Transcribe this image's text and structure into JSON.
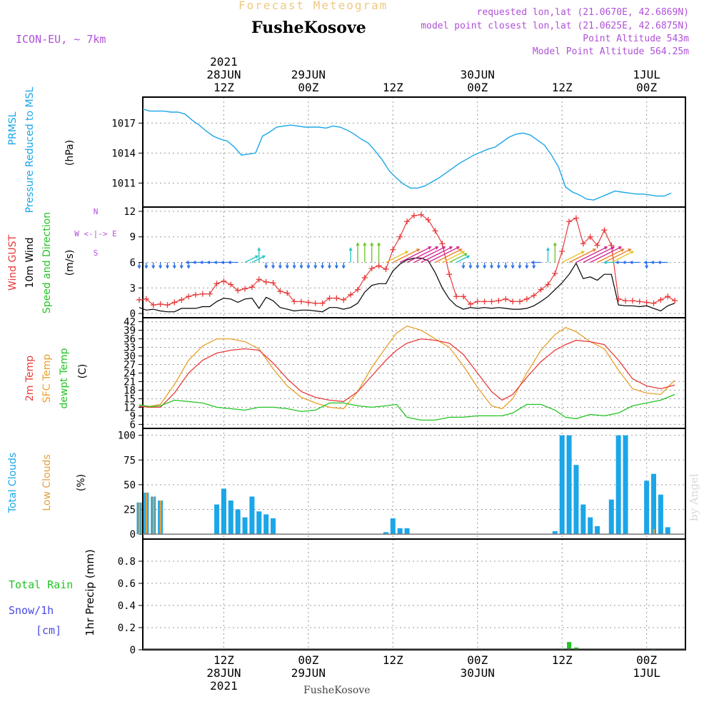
{
  "header": {
    "forecast_title": "Forecast Meteogram",
    "location": "FusheKosove",
    "model": "ICON-EU, ~ 7km",
    "requested": "requested lon,lat (21.0670E, 42.6869N)",
    "closest": "model point closest lon,lat (21.0625E, 42.6875N)",
    "point_alt": "Point Altitude 543m",
    "model_alt": "Model Point Altitude 564.25m",
    "footer_location": "FusheKosove",
    "watermark": "by Angel"
  },
  "time_axis": {
    "top_ticks": [
      {
        "lines": [
          "2021",
          "28JUN",
          "12Z"
        ],
        "t": 12
      },
      {
        "lines": [
          "29JUN",
          "00Z"
        ],
        "t": 24
      },
      {
        "lines": [
          "12Z"
        ],
        "t": 36
      },
      {
        "lines": [
          "30JUN",
          "00Z"
        ],
        "t": 48
      },
      {
        "lines": [
          "12Z"
        ],
        "t": 60
      },
      {
        "lines": [
          "1JUL",
          "00Z"
        ],
        "t": 72
      }
    ],
    "bottom_ticks": [
      {
        "lines": [
          "12Z",
          "28JUN",
          "2021"
        ],
        "t": 12
      },
      {
        "lines": [
          "00Z",
          "29JUN"
        ],
        "t": 24
      },
      {
        "lines": [
          "12Z"
        ],
        "t": 36
      },
      {
        "lines": [
          "00Z",
          "30JUN"
        ],
        "t": 48
      },
      {
        "lines": [
          "12Z"
        ],
        "t": 60
      },
      {
        "lines": [
          "00Z",
          "1JUL"
        ],
        "t": 72
      }
    ]
  },
  "colors": {
    "pressure": "#1ba6e8",
    "gust": "#e83a3a",
    "wind": "#000000",
    "temp2m": "#e83a3a",
    "sfc": "#e8a02a",
    "dewpt": "#22c422",
    "total_cloud": "#1ba6e8",
    "low_cloud": "#e0a040",
    "rain": "#22c422",
    "snow": "#4a4ae8",
    "purple": "#b050d8",
    "title_gold": "#f0c880"
  },
  "chart_data": [
    {
      "type": "line",
      "panel": "pressure",
      "ylabel": [
        "PRMSL",
        "Pressure Reduced to MSL",
        "(hPa)"
      ],
      "ylim": [
        1008.6,
        1019.6
      ],
      "yticks": [
        1011,
        1014,
        1017
      ],
      "x": [
        0.5,
        1.5,
        2.5,
        3.5,
        4.5,
        5.5,
        6.5,
        7.5,
        8.5,
        9.5,
        10.5,
        11.5,
        12.5,
        13.5,
        14.5,
        15.5,
        16.5,
        17.5,
        18.5,
        19.5,
        20.5,
        21.5,
        22.5,
        23.5,
        24.5,
        25.5,
        26.5,
        27.5,
        28.5,
        29.5,
        30.5,
        31.5,
        32.5,
        33.5,
        34.5,
        35.5,
        36.5,
        37.5,
        38.5,
        39.5,
        40.5,
        41.5,
        42.5,
        43.5,
        44.5,
        45.5,
        46.5,
        47.5,
        48.5,
        49.5,
        50.5,
        51.5,
        52.5,
        53.5,
        54.5,
        55.5,
        56.5,
        57.5,
        58.5,
        59.5,
        60.5,
        61.5,
        62.5,
        63.5,
        64.5,
        65.5,
        66.5,
        67.5,
        68.5,
        69.5,
        70.5,
        71.5,
        72.5,
        73.5,
        74.5,
        75.5
      ],
      "series": [
        {
          "name": "PRMSL",
          "values": [
            1018.4,
            1018.2,
            1018.2,
            1018.2,
            1018.1,
            1018.1,
            1017.9,
            1017.3,
            1016.8,
            1016.2,
            1015.7,
            1015.4,
            1015.2,
            1014.6,
            1013.8,
            1013.9,
            1014.0,
            1015.7,
            1016.1,
            1016.6,
            1016.7,
            1016.8,
            1016.7,
            1016.6,
            1016.6,
            1016.6,
            1016.5,
            1016.7,
            1016.6,
            1016.3,
            1015.9,
            1015.4,
            1015.0,
            1014.2,
            1013.3,
            1012.2,
            1011.5,
            1010.9,
            1010.5,
            1010.5,
            1010.7,
            1011.1,
            1011.5,
            1012.0,
            1012.5,
            1013.0,
            1013.4,
            1013.8,
            1014.1,
            1014.4,
            1014.6,
            1015.1,
            1015.6,
            1015.9,
            1016.0,
            1015.8,
            1015.3,
            1014.8,
            1013.8,
            1012.6,
            1010.6,
            1010.1,
            1009.8,
            1009.4,
            1009.3,
            1009.6,
            1009.9,
            1010.2,
            1010.1,
            1010.0,
            1009.9,
            1009.9,
            1009.8,
            1009.7,
            1009.7,
            1010.0
          ]
        }
      ]
    },
    {
      "type": "line",
      "panel": "wind",
      "ylabel": [
        "Wind GUST",
        "10m Wind",
        "Speed and Direction",
        "(m/s)"
      ],
      "compass": [
        "N",
        "W <-|-> E",
        "S"
      ],
      "ylim": [
        -0.5,
        12.5
      ],
      "yticks": [
        0,
        3,
        6,
        9,
        12
      ],
      "series": [
        {
          "name": "Wind GUST",
          "values": [
            1.6,
            1.7,
            1.0,
            1.1,
            1.0,
            1.3,
            1.6,
            2.0,
            2.2,
            2.3,
            2.3,
            3.5,
            3.8,
            3.4,
            2.7,
            2.9,
            3.1,
            4.0,
            3.7,
            3.6,
            2.6,
            2.4,
            1.4,
            1.4,
            1.3,
            1.2,
            1.2,
            1.8,
            1.8,
            1.6,
            2.2,
            2.8,
            4.2,
            5.3,
            5.6,
            5.2,
            7.5,
            9.0,
            10.8,
            11.5,
            11.6,
            11.0,
            9.7,
            8.2,
            4.6,
            2.0,
            2.0,
            1.1,
            1.4,
            1.4,
            1.4,
            1.5,
            1.7,
            1.4,
            1.4,
            1.7,
            2.1,
            2.8,
            3.4,
            4.7,
            7.3,
            10.8,
            11.2,
            8.2,
            9.0,
            8.0,
            9.8,
            8.0,
            1.7,
            1.5,
            1.5,
            1.4,
            1.3,
            1.2,
            1.6,
            2.0,
            1.5
          ]
        },
        {
          "name": "10m Wind",
          "values": [
            0.7,
            0.4,
            0.5,
            0.3,
            0.2,
            0.2,
            0.6,
            0.6,
            0.6,
            0.8,
            0.8,
            1.4,
            1.8,
            1.7,
            1.3,
            1.7,
            1.8,
            0.6,
            1.9,
            1.5,
            0.7,
            0.5,
            0.3,
            0.4,
            0.4,
            0.3,
            0.2,
            0.7,
            0.7,
            0.5,
            0.7,
            1.2,
            2.5,
            3.3,
            3.5,
            3.5,
            5.0,
            5.8,
            6.3,
            6.5,
            6.5,
            6.2,
            4.8,
            3.0,
            1.7,
            0.9,
            0.5,
            0.7,
            0.6,
            0.7,
            0.6,
            0.7,
            0.6,
            0.5,
            0.5,
            0.6,
            0.9,
            1.4,
            2.0,
            2.8,
            3.6,
            4.6,
            5.9,
            4.1,
            4.3,
            3.9,
            4.6,
            4.6,
            1.0,
            0.9,
            0.9,
            0.8,
            0.9,
            0.6,
            0.3,
            0.9,
            1.2
          ]
        }
      ]
    },
    {
      "type": "line",
      "panel": "temperature",
      "ylabel": [
        "2m Temp",
        "SFC Temp",
        "dewpt Temp",
        "(C)"
      ],
      "ylim": [
        4.6,
        43.4
      ],
      "yticks": [
        6,
        9,
        12,
        15,
        18,
        21,
        24,
        27,
        30,
        33,
        36,
        39,
        42
      ],
      "x": [
        0,
        1.5,
        3,
        5,
        7,
        9,
        11,
        13,
        15,
        17,
        19,
        21,
        23,
        25,
        27,
        29,
        31,
        33,
        35,
        36.5,
        38,
        40,
        42,
        44,
        46,
        48,
        50,
        51.5,
        53,
        55,
        57,
        59,
        60.5,
        62,
        64,
        66,
        68,
        70,
        72,
        74,
        76
      ],
      "series": [
        {
          "name": "2m Temp",
          "values": [
            12.3,
            12.0,
            12.0,
            17.0,
            24.0,
            28.5,
            31.0,
            32.0,
            32.5,
            32.0,
            27.5,
            22.0,
            17.5,
            15.5,
            14.5,
            14.0,
            17.5,
            23.0,
            28.5,
            32.0,
            34.5,
            36.0,
            35.5,
            34.5,
            30.5,
            24.0,
            17.5,
            14.5,
            16.5,
            22.5,
            28.0,
            32.0,
            34.0,
            35.5,
            35.0,
            34.0,
            28.5,
            22.0,
            19.5,
            18.5,
            19.8
          ]
        },
        {
          "name": "SFC Temp",
          "values": [
            12.8,
            12.3,
            13.0,
            20.0,
            28.5,
            33.5,
            36.0,
            36.0,
            35.0,
            32.5,
            25.5,
            19.5,
            15.5,
            13.5,
            12.0,
            11.5,
            17.5,
            26.0,
            33.0,
            38.0,
            40.5,
            39.0,
            36.0,
            33.0,
            26.5,
            19.0,
            12.5,
            11.5,
            15.0,
            24.0,
            32.0,
            37.5,
            40.0,
            38.5,
            35.0,
            32.5,
            25.0,
            18.5,
            17.0,
            16.5,
            21.5
          ]
        },
        {
          "name": "dewpt Temp",
          "values": [
            12.8,
            12.2,
            12.5,
            14.5,
            14.0,
            13.5,
            12.0,
            11.5,
            11.0,
            12.0,
            12.0,
            11.5,
            10.5,
            11.0,
            13.5,
            13.5,
            12.5,
            12.0,
            12.5,
            13.0,
            8.5,
            7.5,
            7.5,
            8.5,
            8.5,
            9.0,
            9.0,
            9.0,
            10.0,
            13.0,
            13.0,
            11.0,
            8.5,
            8.0,
            9.5,
            9.0,
            10.0,
            12.5,
            13.5,
            14.5,
            16.5
          ]
        }
      ]
    },
    {
      "type": "bar",
      "panel": "clouds",
      "ylabel": [
        "Total Clouds",
        "Low Clouds",
        "(%)"
      ],
      "ylim": [
        -5,
        107
      ],
      "yticks": [
        0,
        25,
        50,
        75,
        100
      ],
      "hours": [
        0,
        1,
        2,
        3,
        11,
        12,
        13,
        14,
        15,
        16,
        17,
        18,
        19,
        35,
        36,
        37,
        38,
        59,
        60,
        61,
        62,
        63,
        64,
        65,
        66,
        67,
        68,
        69,
        70,
        71,
        72,
        73,
        74,
        75,
        76
      ],
      "series": [
        {
          "name": "Total Clouds",
          "values": [
            32,
            42,
            38,
            34,
            30,
            46,
            34,
            25,
            17,
            38,
            23,
            20,
            16,
            2,
            16,
            6,
            6,
            3,
            100,
            100,
            70,
            30,
            17,
            8,
            0,
            35,
            100,
            100,
            0,
            0,
            54,
            61,
            40,
            7,
            0
          ]
        },
        {
          "name": "Low Clouds",
          "values": [
            32,
            42,
            38,
            34,
            0,
            0,
            0,
            0,
            0,
            0,
            0,
            0,
            0,
            0,
            0,
            0,
            0,
            0,
            0,
            0,
            0,
            0,
            0,
            0,
            0,
            0,
            0,
            0,
            0,
            0,
            0,
            5,
            0,
            0,
            0
          ]
        }
      ]
    },
    {
      "type": "bar",
      "panel": "precipitation",
      "ylabel": [
        "Total Rain",
        "Snow/1h",
        "[cm]",
        "1hr Precip (mm)"
      ],
      "ylim": [
        0,
        1.0
      ],
      "yticks": [
        0,
        0.2,
        0.4,
        0.6,
        0.8
      ],
      "hours": [
        60,
        61,
        62,
        73
      ],
      "series": [
        {
          "name": "Total Rain",
          "values": [
            0.01,
            0.07,
            0.02,
            0.01
          ]
        }
      ]
    },
    {
      "type": "barbs",
      "panel": "wind-direction",
      "arrow_hours": [
        0,
        1,
        2,
        3,
        4,
        5,
        6,
        7,
        8,
        9,
        10,
        11,
        12,
        13,
        14,
        15,
        16,
        17,
        18,
        19,
        20,
        21,
        22,
        23,
        24,
        25,
        26,
        27,
        28,
        29,
        30,
        31,
        32,
        33,
        34,
        35,
        36,
        37,
        38,
        39,
        40,
        41,
        42,
        43,
        44,
        45,
        46,
        47,
        48,
        49,
        50,
        51,
        52,
        53,
        54,
        55,
        56,
        57,
        58,
        59,
        60,
        61,
        62,
        63,
        64,
        65,
        66,
        67,
        68,
        69,
        70,
        71,
        72,
        73,
        74,
        75
      ],
      "arrow_dirs": [
        "S",
        "S",
        "S",
        "S",
        "S",
        "S",
        "S",
        "S",
        "W",
        "W",
        "W",
        "W",
        "W",
        "W",
        "W",
        "NE",
        "NE",
        "N",
        "S",
        "S",
        "S",
        "S",
        "S",
        "S",
        "S",
        "S",
        "S",
        "S",
        "S",
        "S",
        "N",
        "N",
        "N",
        "N",
        "N",
        "NE",
        "NE",
        "NE",
        "NE",
        "NE",
        "NE",
        "NE",
        "NE",
        "NE",
        "NE",
        "NE",
        "S",
        "S",
        "S",
        "S",
        "S",
        "S",
        "S",
        "S",
        "S",
        "S",
        "S",
        "W",
        "N",
        "N",
        "NE",
        "NE",
        "NE",
        "NE",
        "NE",
        "NE",
        "NE",
        "NE",
        "W",
        "W",
        "W",
        "W",
        "S",
        "W",
        "W",
        "W"
      ],
      "arrow_speeds": [
        1,
        1,
        1,
        1,
        1,
        1,
        1,
        1,
        1,
        1,
        1,
        1,
        1,
        1,
        1,
        2,
        2,
        2,
        1,
        1,
        1,
        1,
        1,
        1,
        1,
        1,
        1,
        1,
        1,
        1,
        2,
        3,
        3,
        3,
        3,
        4,
        5,
        6,
        6,
        6,
        6,
        6,
        5,
        4,
        3,
        2,
        1,
        1,
        1,
        1,
        1,
        1,
        1,
        1,
        1,
        1,
        1,
        1,
        2,
        3,
        4,
        5,
        6,
        6,
        6,
        5,
        5,
        4,
        2,
        1,
        1,
        1,
        1,
        1,
        1,
        1
      ]
    }
  ]
}
